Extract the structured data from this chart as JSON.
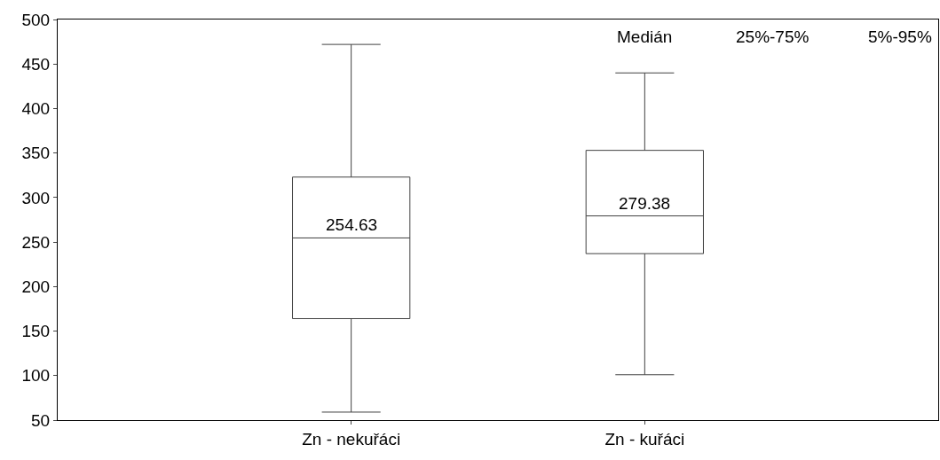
{
  "chart_data": {
    "type": "box",
    "categories": [
      "Zn - nekuřáci",
      "Zn - kuřáci"
    ],
    "boxes": [
      {
        "low": 59,
        "q1": 164,
        "median": 254.63,
        "q3": 323,
        "high": 472
      },
      {
        "low": 101,
        "q1": 237,
        "median": 279.38,
        "q3": 353,
        "high": 440
      }
    ],
    "color": "#404040",
    "value_labels": [
      "254.63",
      "279.38"
    ],
    "ylim": [
      50,
      500
    ],
    "yticks": [
      50,
      100,
      150,
      200,
      250,
      300,
      350,
      400,
      450,
      500
    ],
    "annotations": [
      "Medián",
      "25%-75%",
      "5%-95%"
    ]
  }
}
